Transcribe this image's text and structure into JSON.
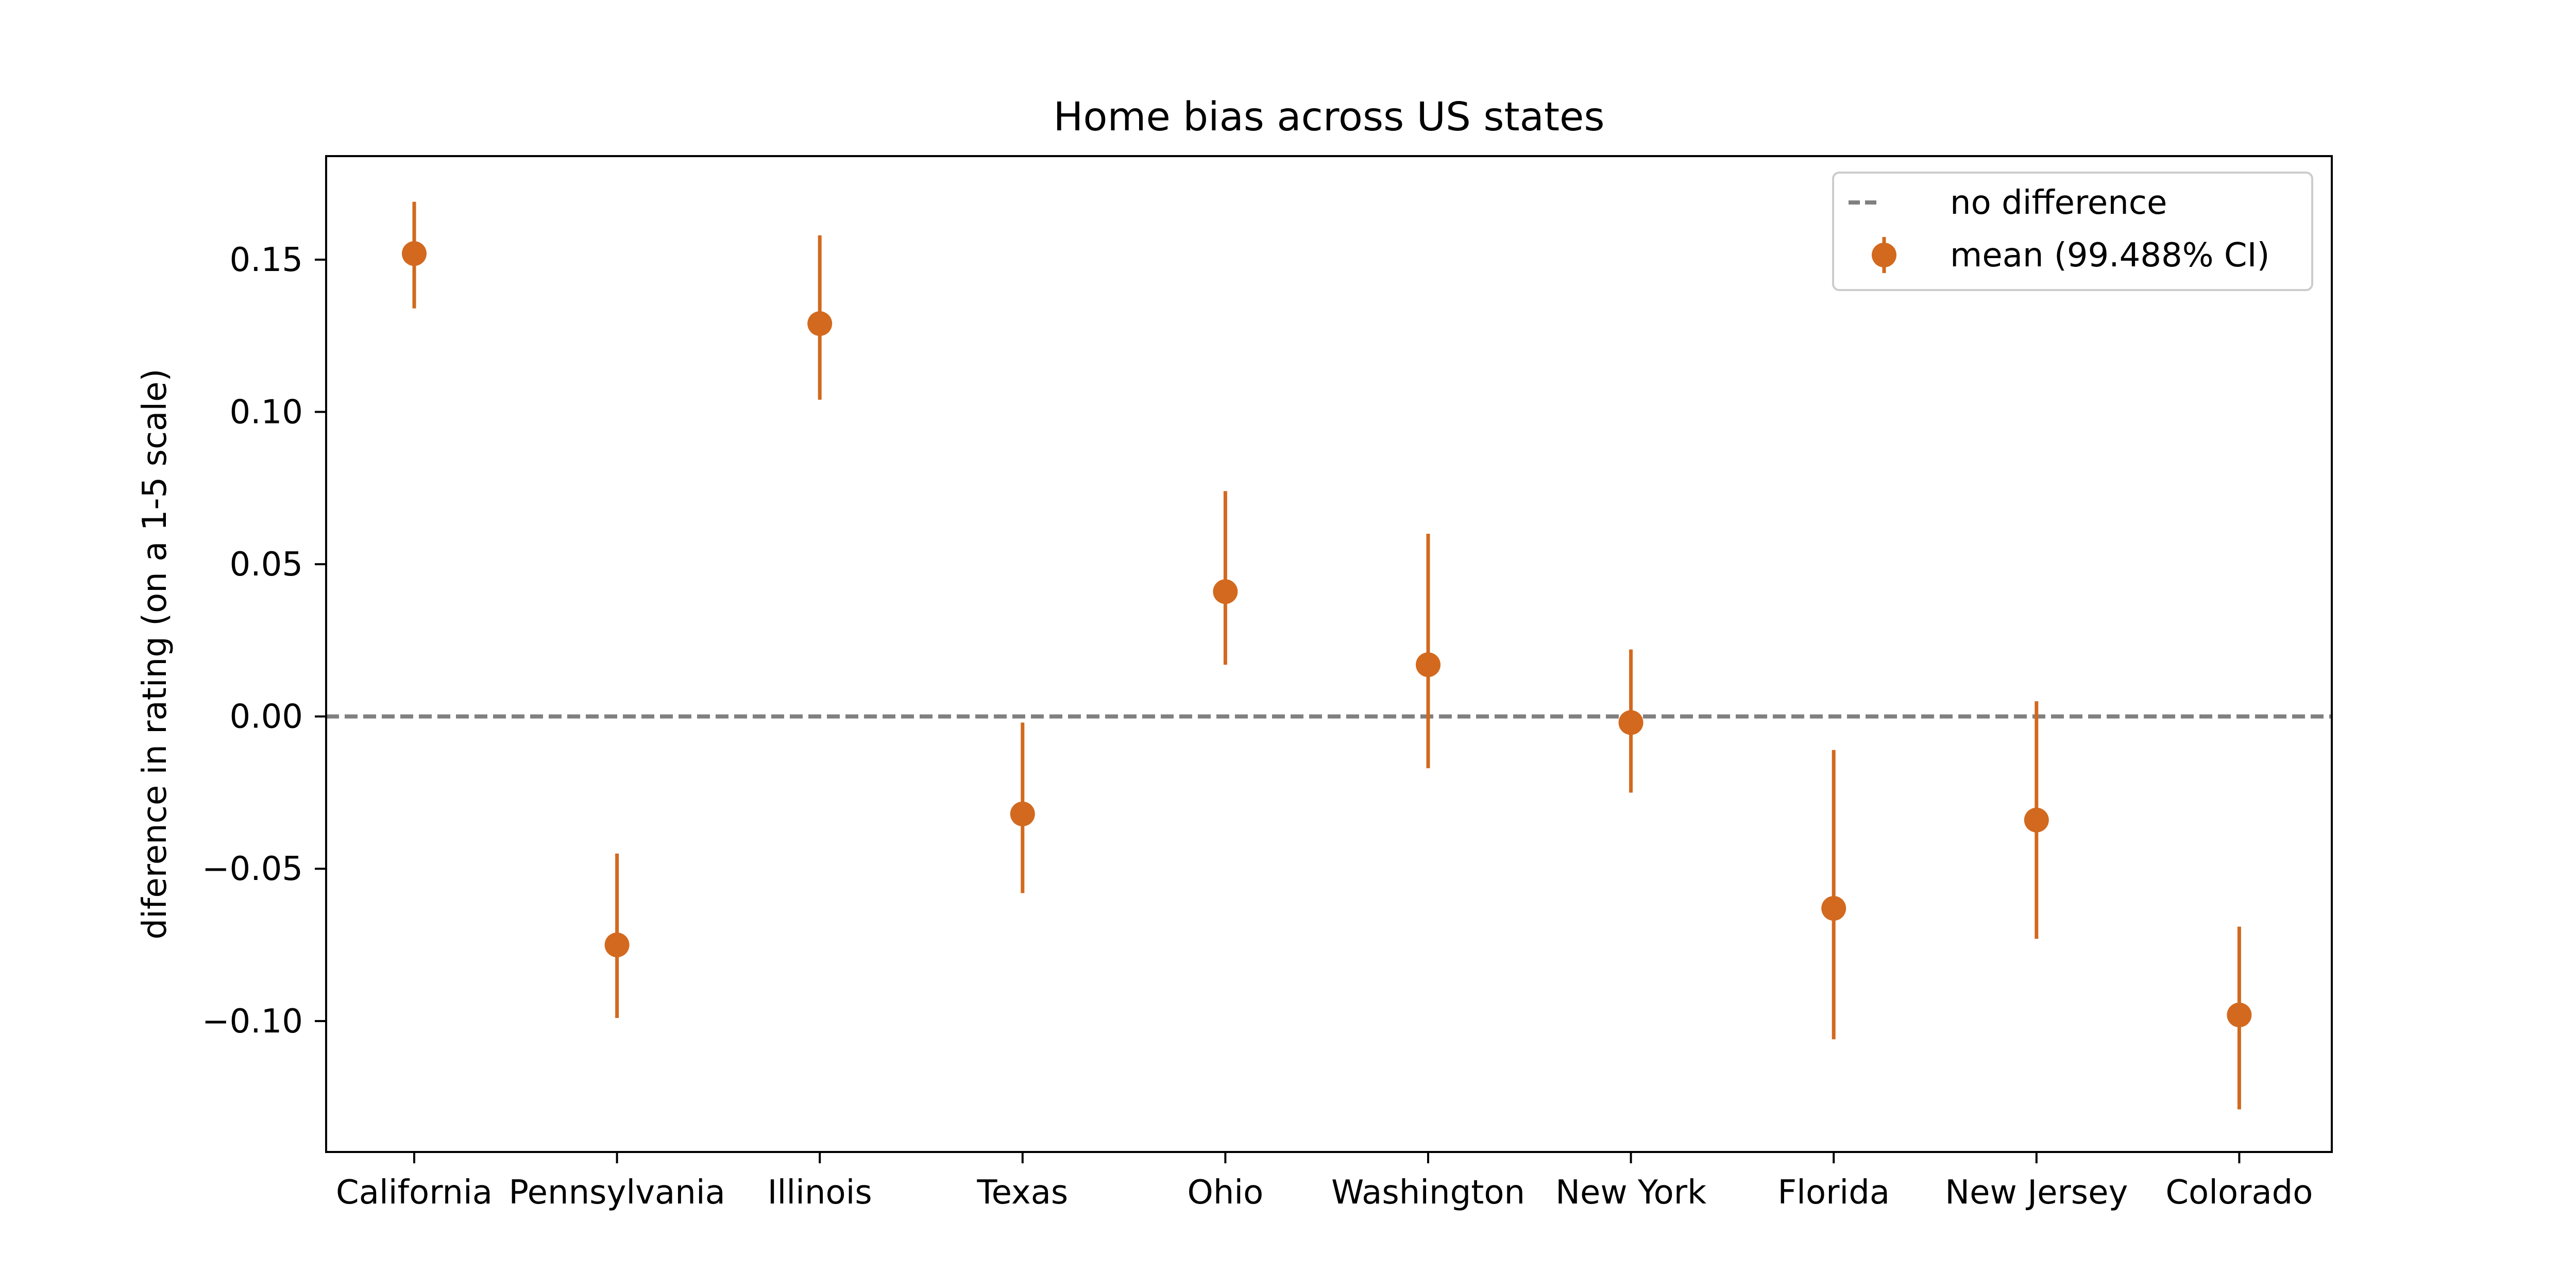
{
  "chart_data": {
    "type": "errorbar",
    "title": "Home bias across US states",
    "xlabel": "",
    "ylabel": "diference in rating (on a 1-5 scale)",
    "categories": [
      "California",
      "Pennsylvania",
      "Illinois",
      "Texas",
      "Ohio",
      "Washington",
      "New York",
      "Florida",
      "New Jersey",
      "Colorado"
    ],
    "series": [
      {
        "name": "mean (99.488% CI)",
        "color": "#d2691e",
        "values": [
          0.152,
          -0.075,
          0.129,
          -0.032,
          0.041,
          0.017,
          -0.002,
          -0.063,
          -0.034,
          -0.098
        ],
        "ci_low": [
          0.134,
          -0.099,
          0.104,
          -0.058,
          0.017,
          -0.017,
          -0.025,
          -0.106,
          -0.073,
          -0.129
        ],
        "ci_high": [
          0.169,
          -0.045,
          0.158,
          -0.002,
          0.074,
          0.06,
          0.022,
          -0.011,
          0.005,
          -0.069
        ]
      }
    ],
    "reference_line": {
      "name": "no difference",
      "y": 0,
      "color": "#808080",
      "style": "dashed"
    },
    "ylim": [
      -0.143,
      0.184
    ],
    "yticks": [
      -0.1,
      -0.05,
      0.0,
      0.05,
      0.1,
      0.15
    ],
    "ytick_labels": [
      "−0.10",
      "−0.05",
      "0.00",
      "0.05",
      "0.10",
      "0.15"
    ],
    "legend": {
      "location": "top-right",
      "entries": [
        "no difference",
        "mean (99.488% CI)"
      ]
    },
    "grid": false
  }
}
